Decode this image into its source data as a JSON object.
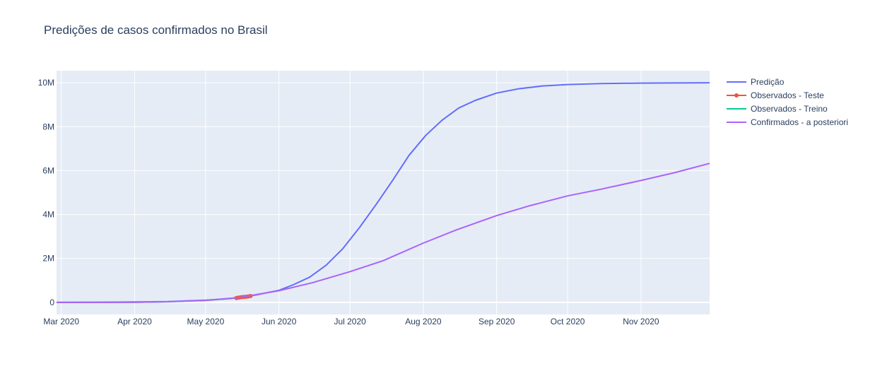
{
  "chart_data": {
    "type": "line",
    "title": "Predições de casos confirmados no Brasil",
    "xlabel": "",
    "ylabel": "",
    "x_range": [
      "2020-02-28",
      "2020-11-30"
    ],
    "ylim": [
      -550000,
      10550000
    ],
    "x_ticks": [
      {
        "date": "2020-03-01",
        "label": "Mar 2020"
      },
      {
        "date": "2020-04-01",
        "label": "Apr 2020"
      },
      {
        "date": "2020-05-01",
        "label": "May 2020"
      },
      {
        "date": "2020-06-01",
        "label": "Jun 2020"
      },
      {
        "date": "2020-07-01",
        "label": "Jul 2020"
      },
      {
        "date": "2020-08-01",
        "label": "Aug 2020"
      },
      {
        "date": "2020-09-01",
        "label": "Sep 2020"
      },
      {
        "date": "2020-10-01",
        "label": "Oct 2020"
      },
      {
        "date": "2020-11-01",
        "label": "Nov 2020"
      }
    ],
    "y_ticks": [
      {
        "value": 0,
        "label": "0"
      },
      {
        "value": 2000000,
        "label": "2M"
      },
      {
        "value": 4000000,
        "label": "4M"
      },
      {
        "value": 6000000,
        "label": "6M"
      },
      {
        "value": 8000000,
        "label": "8M"
      },
      {
        "value": 10000000,
        "label": "10M"
      }
    ],
    "series": [
      {
        "name": "Predição",
        "color": "#636efa",
        "marker": false,
        "points": [
          [
            "2020-02-28",
            0
          ],
          [
            "2020-03-15",
            4000
          ],
          [
            "2020-04-01",
            20000
          ],
          [
            "2020-04-15",
            40000
          ],
          [
            "2020-05-01",
            100000
          ],
          [
            "2020-05-10",
            160000
          ],
          [
            "2020-05-16",
            240000
          ],
          [
            "2020-05-22",
            330000
          ],
          [
            "2020-06-01",
            550000
          ],
          [
            "2020-06-07",
            800000
          ],
          [
            "2020-06-14",
            1150000
          ],
          [
            "2020-06-21",
            1700000
          ],
          [
            "2020-06-28",
            2450000
          ],
          [
            "2020-07-05",
            3400000
          ],
          [
            "2020-07-12",
            4450000
          ],
          [
            "2020-07-19",
            5550000
          ],
          [
            "2020-07-26",
            6700000
          ],
          [
            "2020-08-02",
            7600000
          ],
          [
            "2020-08-09",
            8300000
          ],
          [
            "2020-08-16",
            8850000
          ],
          [
            "2020-08-23",
            9200000
          ],
          [
            "2020-09-01",
            9530000
          ],
          [
            "2020-09-10",
            9720000
          ],
          [
            "2020-09-20",
            9850000
          ],
          [
            "2020-10-01",
            9920000
          ],
          [
            "2020-10-15",
            9960000
          ],
          [
            "2020-11-01",
            9985000
          ],
          [
            "2020-11-30",
            10000000
          ]
        ]
      },
      {
        "name": "Observados - Teste",
        "color": "#ef553b",
        "marker": true,
        "points": [
          [
            "2020-05-14",
            200000
          ],
          [
            "2020-05-15",
            220000
          ],
          [
            "2020-05-16",
            235000
          ],
          [
            "2020-05-17",
            245000
          ],
          [
            "2020-05-18",
            255000
          ],
          [
            "2020-05-19",
            270000
          ],
          [
            "2020-05-20",
            290000
          ]
        ]
      },
      {
        "name": "Observados - Treino",
        "color": "#00cc96",
        "marker": false,
        "points": [
          [
            "2020-02-28",
            0
          ],
          [
            "2020-03-15",
            200
          ],
          [
            "2020-04-01",
            6000
          ],
          [
            "2020-04-15",
            28000
          ],
          [
            "2020-05-01",
            90000
          ],
          [
            "2020-05-13",
            190000
          ]
        ]
      },
      {
        "name": "Confirmados - a posteriori",
        "color": "#ab63fa",
        "marker": false,
        "points": [
          [
            "2020-02-28",
            0
          ],
          [
            "2020-03-15",
            200
          ],
          [
            "2020-04-01",
            6000
          ],
          [
            "2020-04-15",
            28000
          ],
          [
            "2020-05-01",
            90000
          ],
          [
            "2020-05-15",
            220000
          ],
          [
            "2020-06-01",
            530000
          ],
          [
            "2020-06-15",
            890000
          ],
          [
            "2020-07-01",
            1400000
          ],
          [
            "2020-07-15",
            1900000
          ],
          [
            "2020-08-01",
            2700000
          ],
          [
            "2020-08-15",
            3300000
          ],
          [
            "2020-09-01",
            3950000
          ],
          [
            "2020-09-15",
            4400000
          ],
          [
            "2020-10-01",
            4850000
          ],
          [
            "2020-10-15",
            5150000
          ],
          [
            "2020-11-01",
            5550000
          ],
          [
            "2020-11-15",
            5900000
          ],
          [
            "2020-11-30",
            6330000
          ]
        ]
      }
    ],
    "legend": {
      "position": "right"
    },
    "grid": true
  }
}
